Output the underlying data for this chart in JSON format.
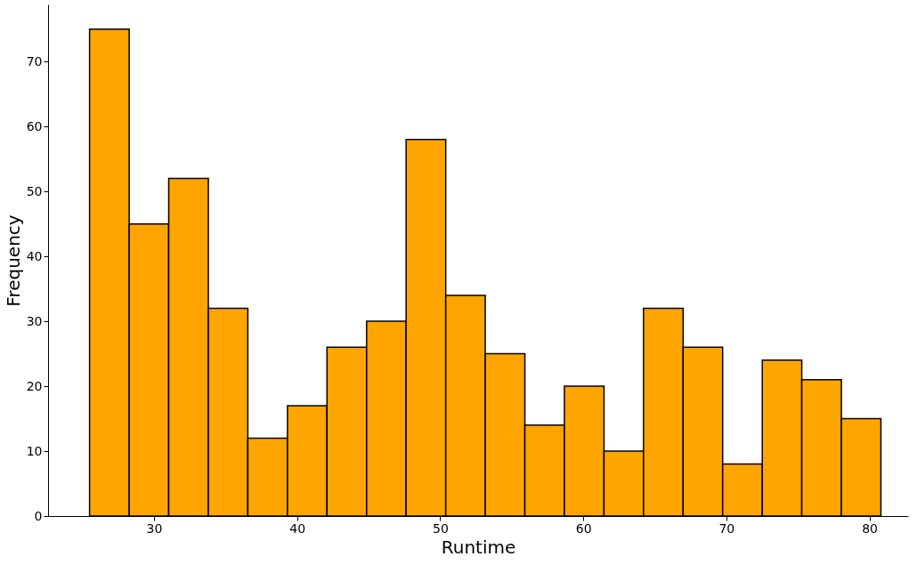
{
  "chart_data": {
    "type": "histogram",
    "xlabel": "Runtime",
    "ylabel": "Frequency",
    "bins": [
      25.5,
      28.27,
      31.03,
      33.8,
      36.56,
      39.33,
      42.09,
      44.86,
      47.62,
      50.39,
      53.15,
      55.92,
      58.68,
      61.45,
      64.21,
      66.98,
      69.74,
      72.51,
      75.27,
      78.04,
      80.8
    ],
    "values": [
      75,
      45,
      52,
      32,
      12,
      17,
      26,
      30,
      58,
      34,
      25,
      14,
      20,
      10,
      32,
      26,
      8,
      24,
      21,
      15
    ],
    "color": "#ffa500",
    "xlim": [
      22.6,
      82.7
    ],
    "ylim": [
      0,
      78.8
    ],
    "xticks": [
      30,
      40,
      50,
      60,
      70,
      80
    ],
    "yticks": [
      0,
      10,
      20,
      30,
      40,
      50,
      60,
      70
    ],
    "grid": false
  }
}
